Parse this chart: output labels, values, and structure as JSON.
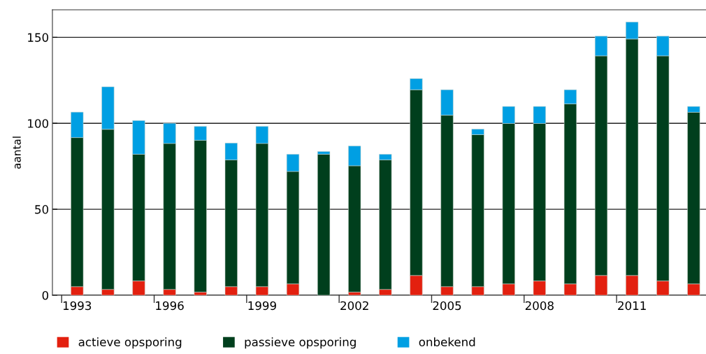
{
  "chart_data": {
    "type": "bar",
    "stacked": true,
    "ylabel": "aantal",
    "categories": [
      "1993",
      null,
      null,
      "1996",
      null,
      null,
      "1999",
      null,
      null,
      "2002",
      null,
      null,
      "2005",
      null,
      null,
      "2008",
      null,
      null,
      "2011",
      null,
      null
    ],
    "series": [
      {
        "name": "actieve opsporing",
        "color": "#e3200f",
        "values": [
          5,
          3.4,
          8.3,
          3.4,
          1.8,
          5,
          5,
          6.6,
          0,
          1.8,
          3.4,
          11.5,
          5,
          5,
          6.6,
          8.3,
          6.6,
          11.5,
          11.5,
          8.3,
          6.6
        ]
      },
      {
        "name": "passieve opsporing",
        "color": "#003f1d",
        "values": [
          86.7,
          93.1,
          73.7,
          84.9,
          88.3,
          73.7,
          83.3,
          65.4,
          82,
          73.5,
          75.3,
          108,
          99.7,
          88.4,
          93.3,
          91.6,
          104.7,
          127.7,
          137.5,
          130.9,
          99.8
        ]
      },
      {
        "name": "onbekend",
        "color": "#009fe3",
        "values": [
          14.8,
          24.7,
          19.6,
          11.7,
          8.1,
          9.8,
          9.9,
          10,
          1.6,
          11.5,
          3.3,
          6.5,
          14.8,
          3.2,
          9.9,
          9.9,
          8.2,
          11.5,
          9.9,
          11.5,
          3.4
        ]
      }
    ],
    "ylim": [
      0,
      166
    ],
    "yticks": [
      0,
      50,
      100,
      150
    ],
    "grid": "y",
    "legend": "bottom"
  }
}
